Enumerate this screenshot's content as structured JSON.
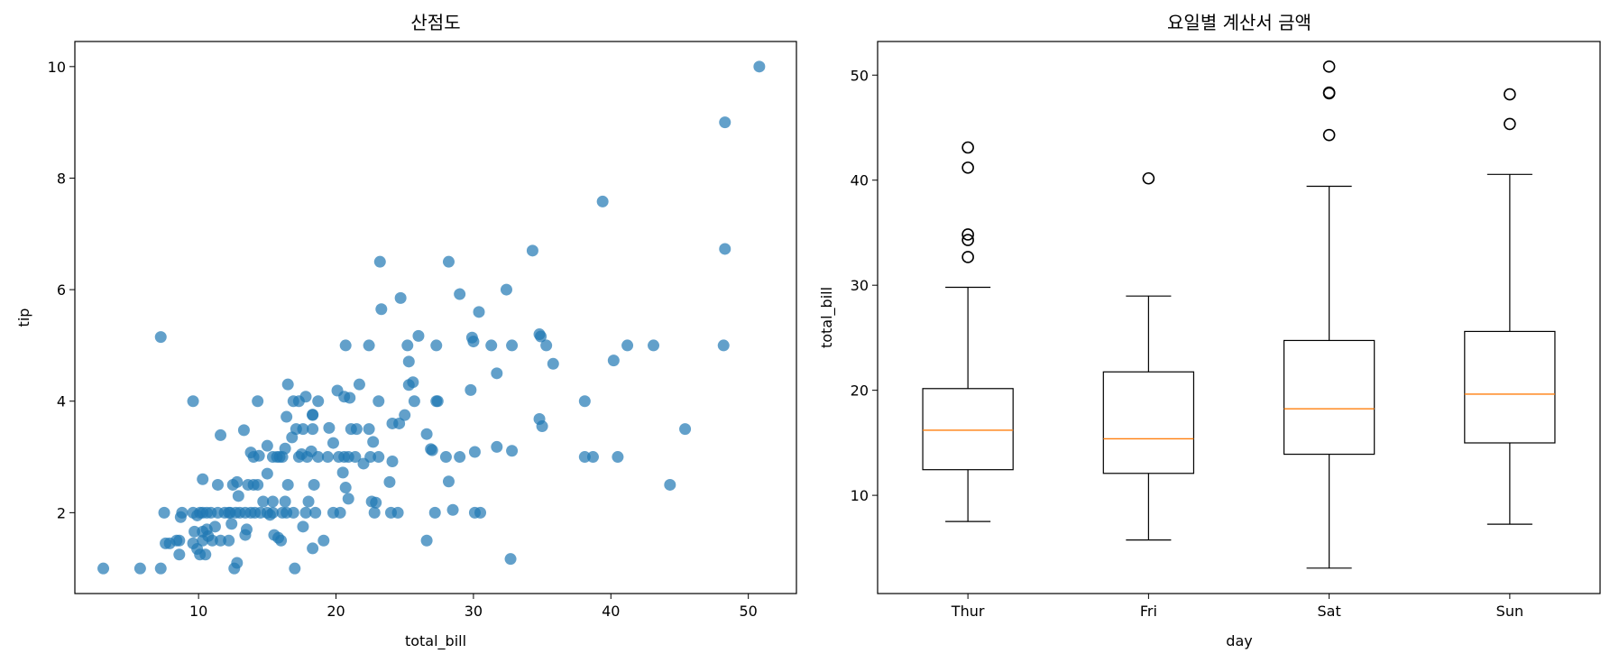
{
  "chart_data": [
    {
      "type": "scatter",
      "title": "산점도",
      "xlabel": "total_bill",
      "ylabel": "tip",
      "xlim": [
        1,
        53.5
      ],
      "ylim": [
        0.55,
        10.45
      ],
      "xticks": [
        10,
        20,
        30,
        40,
        50
      ],
      "yticks": [
        2,
        4,
        6,
        8,
        10
      ],
      "xtick_labels": [
        "10",
        "20",
        "30",
        "40",
        "50"
      ],
      "ytick_labels": [
        "2",
        "4",
        "6",
        "8",
        "10"
      ],
      "grid": false,
      "marker_color": "#1f77b4",
      "marker_alpha": 0.7,
      "points": [
        [
          3.07,
          1.0
        ],
        [
          5.75,
          1.0
        ],
        [
          7.25,
          1.0
        ],
        [
          12.6,
          1.0
        ],
        [
          17.0,
          1.0
        ],
        [
          12.8,
          1.1
        ],
        [
          7.6,
          1.45
        ],
        [
          7.9,
          1.45
        ],
        [
          8.4,
          1.5
        ],
        [
          8.6,
          1.5
        ],
        [
          9.6,
          1.45
        ],
        [
          10.1,
          1.25
        ],
        [
          10.5,
          1.25
        ],
        [
          8.6,
          1.25
        ],
        [
          9.9,
          1.35
        ],
        [
          10.3,
          1.5
        ],
        [
          10.7,
          1.58
        ],
        [
          11.0,
          1.5
        ],
        [
          11.6,
          1.5
        ],
        [
          12.2,
          1.5
        ],
        [
          11.2,
          1.75
        ],
        [
          12.4,
          1.8
        ],
        [
          13.4,
          1.6
        ],
        [
          13.5,
          1.7
        ],
        [
          15.5,
          1.6
        ],
        [
          15.8,
          1.55
        ],
        [
          16.0,
          1.5
        ],
        [
          17.6,
          1.75
        ],
        [
          18.3,
          1.36
        ],
        [
          19.1,
          1.5
        ],
        [
          26.6,
          1.5
        ],
        [
          32.7,
          1.17
        ],
        [
          9.7,
          1.66
        ],
        [
          10.3,
          1.66
        ],
        [
          10.6,
          1.7
        ],
        [
          7.5,
          2.0
        ],
        [
          8.8,
          2.0
        ],
        [
          9.6,
          2.0
        ],
        [
          10.1,
          2.0
        ],
        [
          10.3,
          2.0
        ],
        [
          10.6,
          2.0
        ],
        [
          10.9,
          2.0
        ],
        [
          11.4,
          2.0
        ],
        [
          11.9,
          2.0
        ],
        [
          12.3,
          2.0
        ],
        [
          12.7,
          2.0
        ],
        [
          13.0,
          2.0
        ],
        [
          13.4,
          2.0
        ],
        [
          13.8,
          2.0
        ],
        [
          14.1,
          2.0
        ],
        [
          14.5,
          2.0
        ],
        [
          15.0,
          2.0
        ],
        [
          15.4,
          2.0
        ],
        [
          16.1,
          2.0
        ],
        [
          16.4,
          2.0
        ],
        [
          16.9,
          2.0
        ],
        [
          17.8,
          2.0
        ],
        [
          18.5,
          2.0
        ],
        [
          19.8,
          2.0
        ],
        [
          20.3,
          2.0
        ],
        [
          22.8,
          2.0
        ],
        [
          24.0,
          2.0
        ],
        [
          24.5,
          2.0
        ],
        [
          27.2,
          2.0
        ],
        [
          30.1,
          2.0
        ],
        [
          30.5,
          2.0
        ],
        [
          8.7,
          1.92
        ],
        [
          9.9,
          1.95
        ],
        [
          15.2,
          1.96
        ],
        [
          28.5,
          2.05
        ],
        [
          10.3,
          2.6
        ],
        [
          11.4,
          2.5
        ],
        [
          12.5,
          2.5
        ],
        [
          12.8,
          2.55
        ],
        [
          13.6,
          2.5
        ],
        [
          14.0,
          2.5
        ],
        [
          14.7,
          2.2
        ],
        [
          15.4,
          2.2
        ],
        [
          16.5,
          2.5
        ],
        [
          16.3,
          2.2
        ],
        [
          18.0,
          2.2
        ],
        [
          18.4,
          2.5
        ],
        [
          20.7,
          2.45
        ],
        [
          20.9,
          2.25
        ],
        [
          22.6,
          2.2
        ],
        [
          22.9,
          2.18
        ],
        [
          23.9,
          2.55
        ],
        [
          28.2,
          2.56
        ],
        [
          44.3,
          2.5
        ],
        [
          11.6,
          3.39
        ],
        [
          12.2,
          2.0
        ],
        [
          12.9,
          2.3
        ],
        [
          14.0,
          3.0
        ],
        [
          14.3,
          2.5
        ],
        [
          15.0,
          3.2
        ],
        [
          15.4,
          3.0
        ],
        [
          15.7,
          3.0
        ],
        [
          15.9,
          3.0
        ],
        [
          16.1,
          3.0
        ],
        [
          16.3,
          3.15
        ],
        [
          16.8,
          3.35
        ],
        [
          17.3,
          3.0
        ],
        [
          17.5,
          3.05
        ],
        [
          17.9,
          3.0
        ],
        [
          18.2,
          3.1
        ],
        [
          18.7,
          3.0
        ],
        [
          19.4,
          3.0
        ],
        [
          19.8,
          3.25
        ],
        [
          20.2,
          3.0
        ],
        [
          20.6,
          3.0
        ],
        [
          20.9,
          3.0
        ],
        [
          21.4,
          3.0
        ],
        [
          21.1,
          3.5
        ],
        [
          20.5,
          2.72
        ],
        [
          22.0,
          2.88
        ],
        [
          22.5,
          3.0
        ],
        [
          23.1,
          3.0
        ],
        [
          24.1,
          2.92
        ],
        [
          26.9,
          3.14
        ],
        [
          27.0,
          3.12
        ],
        [
          28.0,
          3.0
        ],
        [
          29.0,
          3.0
        ],
        [
          30.1,
          3.09
        ],
        [
          31.7,
          3.18
        ],
        [
          32.8,
          3.11
        ],
        [
          38.1,
          3.0
        ],
        [
          38.7,
          3.0
        ],
        [
          40.5,
          3.0
        ],
        [
          13.3,
          3.48
        ],
        [
          13.8,
          3.08
        ],
        [
          14.4,
          3.02
        ],
        [
          15.0,
          2.7
        ],
        [
          16.4,
          3.72
        ],
        [
          17.1,
          3.5
        ],
        [
          17.6,
          3.5
        ],
        [
          18.3,
          3.5
        ],
        [
          18.3,
          3.75
        ],
        [
          19.5,
          3.52
        ],
        [
          21.5,
          3.5
        ],
        [
          22.4,
          3.5
        ],
        [
          22.7,
          3.27
        ],
        [
          24.1,
          3.6
        ],
        [
          24.6,
          3.6
        ],
        [
          25.0,
          3.75
        ],
        [
          26.6,
          3.41
        ],
        [
          35.0,
          3.55
        ],
        [
          34.8,
          3.68
        ],
        [
          45.4,
          3.5
        ],
        [
          9.6,
          4.0
        ],
        [
          14.3,
          4.0
        ],
        [
          16.5,
          4.3
        ],
        [
          16.9,
          4.0
        ],
        [
          17.3,
          4.0
        ],
        [
          17.8,
          4.08
        ],
        [
          18.3,
          3.76
        ],
        [
          18.7,
          4.0
        ],
        [
          20.1,
          4.19
        ],
        [
          20.6,
          4.08
        ],
        [
          21.0,
          4.06
        ],
        [
          21.7,
          4.3
        ],
        [
          23.1,
          4.0
        ],
        [
          25.3,
          4.29
        ],
        [
          25.6,
          4.34
        ],
        [
          25.7,
          4.0
        ],
        [
          27.3,
          4.0
        ],
        [
          27.4,
          4.0
        ],
        [
          29.8,
          4.2
        ],
        [
          31.7,
          4.5
        ],
        [
          35.8,
          4.67
        ],
        [
          38.1,
          4.0
        ],
        [
          40.2,
          4.73
        ],
        [
          7.25,
          5.15
        ],
        [
          20.7,
          5.0
        ],
        [
          22.4,
          5.0
        ],
        [
          25.2,
          5.0
        ],
        [
          25.3,
          4.71
        ],
        [
          26.0,
          5.17
        ],
        [
          27.3,
          5.0
        ],
        [
          29.9,
          5.14
        ],
        [
          30.0,
          5.07
        ],
        [
          31.3,
          5.0
        ],
        [
          32.8,
          5.0
        ],
        [
          34.8,
          5.2
        ],
        [
          34.9,
          5.16
        ],
        [
          35.3,
          5.0
        ],
        [
          41.2,
          5.0
        ],
        [
          43.1,
          5.0
        ],
        [
          48.2,
          5.0
        ],
        [
          23.3,
          5.65
        ],
        [
          24.7,
          5.85
        ],
        [
          29.0,
          5.92
        ],
        [
          30.4,
          5.6
        ],
        [
          32.4,
          6.0
        ],
        [
          23.2,
          6.5
        ],
        [
          28.2,
          6.5
        ],
        [
          34.3,
          6.7
        ],
        [
          48.3,
          6.73
        ],
        [
          39.4,
          7.58
        ],
        [
          48.3,
          9.0
        ],
        [
          50.8,
          10.0
        ]
      ]
    },
    {
      "type": "box",
      "title": "요일별 계산서 금액",
      "xlabel": "day",
      "ylabel": "total_bill",
      "ylim": [
        0.65,
        53.2
      ],
      "yticks": [
        10,
        20,
        30,
        40,
        50
      ],
      "ytick_labels": [
        "10",
        "20",
        "30",
        "40",
        "50"
      ],
      "grid": false,
      "median_color": "#ff7f0e",
      "categories": [
        "Thur",
        "Fri",
        "Sat",
        "Sun"
      ],
      "boxes": [
        {
          "label": "Thur",
          "whislo": 7.51,
          "q1": 12.44,
          "med": 16.2,
          "q3": 20.16,
          "whishi": 29.8,
          "fliers": [
            32.68,
            34.3,
            34.83,
            41.19,
            43.11
          ]
        },
        {
          "label": "Fri",
          "whislo": 5.75,
          "q1": 12.09,
          "med": 15.38,
          "q3": 21.75,
          "whishi": 28.97,
          "fliers": [
            40.17
          ]
        },
        {
          "label": "Sat",
          "whislo": 3.07,
          "q1": 13.91,
          "med": 18.24,
          "q3": 24.74,
          "whishi": 39.42,
          "fliers": [
            44.3,
            48.27,
            48.33,
            50.81
          ]
        },
        {
          "label": "Sun",
          "whislo": 7.25,
          "q1": 14.99,
          "med": 19.63,
          "q3": 25.6,
          "whishi": 40.55,
          "fliers": [
            45.35,
            48.17
          ]
        }
      ]
    }
  ]
}
